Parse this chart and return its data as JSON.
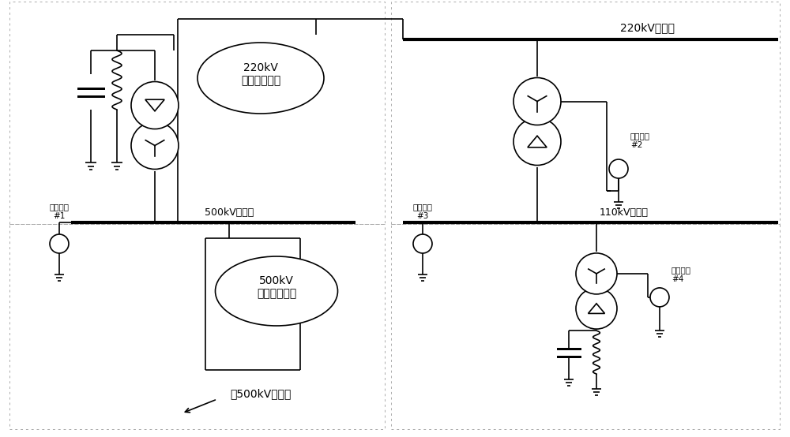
{
  "bg_color": "#ffffff",
  "line_color": "#000000",
  "dot_color": "#999999",
  "text_color": "#000000",
  "figsize": [
    10.0,
    5.54
  ],
  "dpi": 100,
  "labels": {
    "station_500kV": "500kV变电站",
    "station_220kV": "220kV变电站",
    "station_110kV": "110kV变电站",
    "station_to500kV": "到500kV变电站",
    "line_220kV": "220kV\n交流输电线路",
    "line_500kV": "500kV\n交流输电线路",
    "recorder1": "录波装置\n#1",
    "recorder2": "录波装置\n#2",
    "recorder3": "录波装置\n#3",
    "recorder4": "录波装置\n#4"
  }
}
